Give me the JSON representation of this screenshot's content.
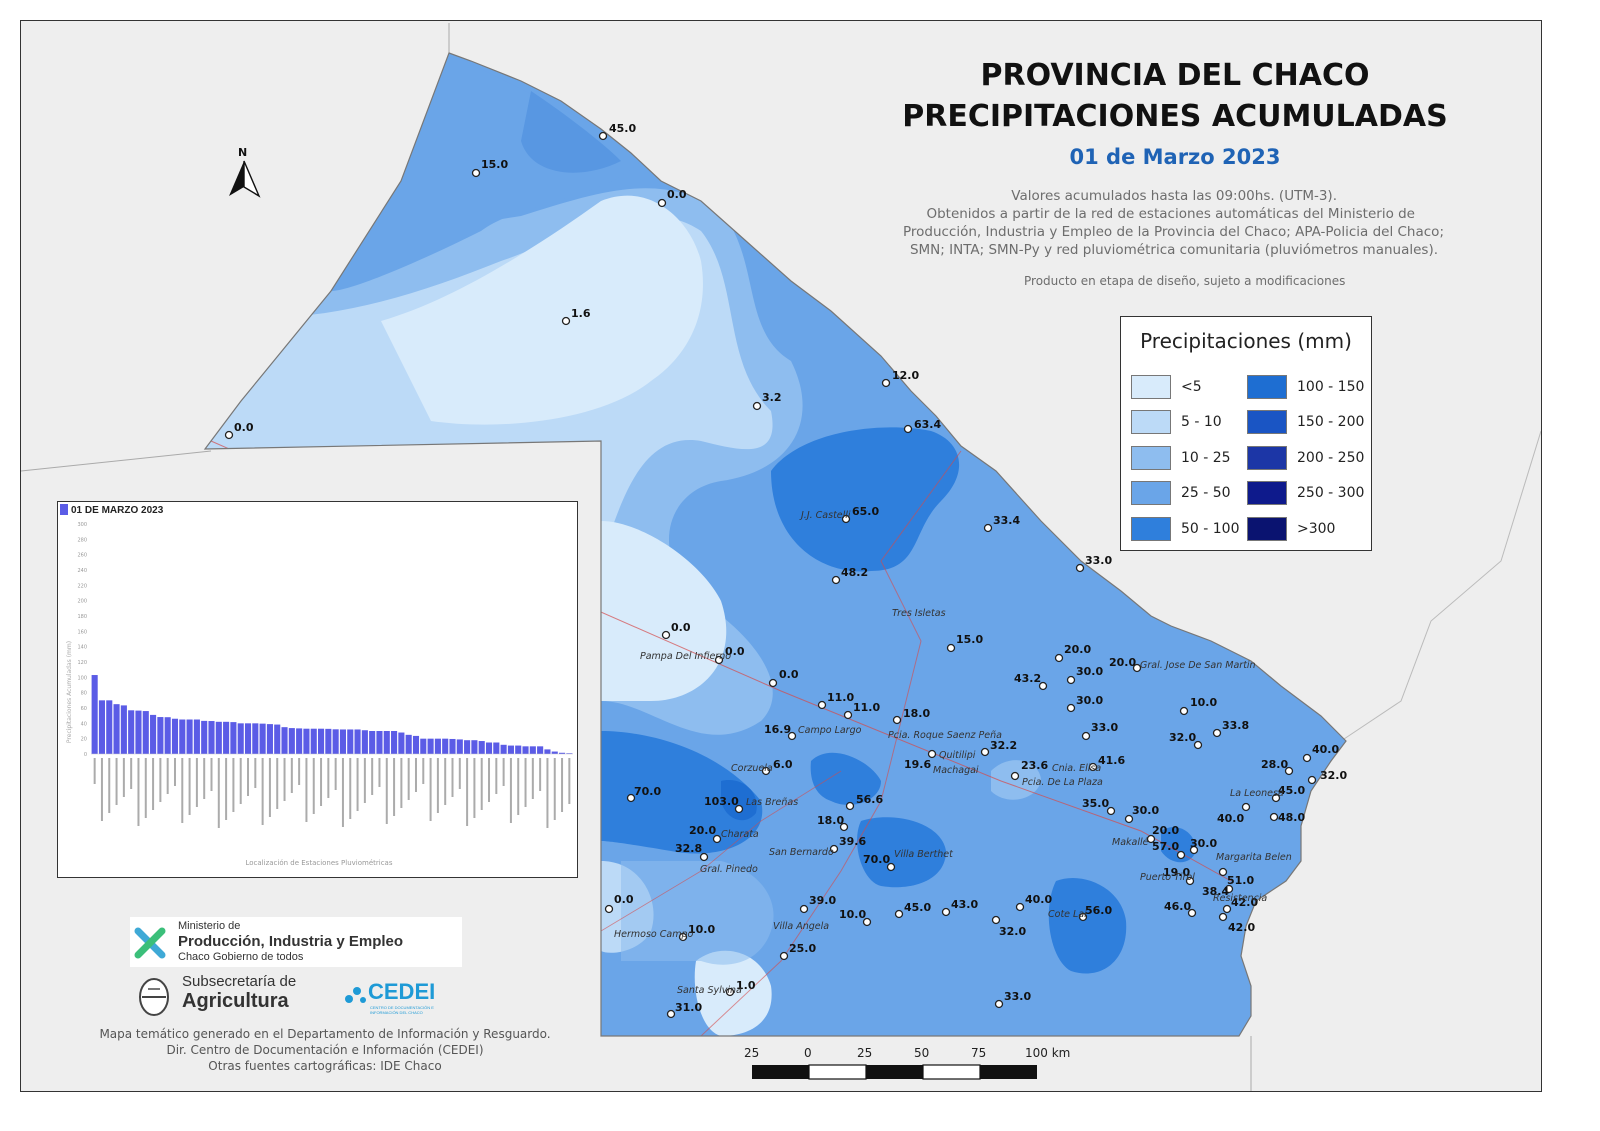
{
  "title": {
    "line1": "PROVINCIA DEL CHACO",
    "line2": "PRECIPITACIONES ACUMULADAS",
    "date": "01 de Marzo 2023"
  },
  "description": {
    "line1": "Valores acumulados hasta las 09:00hs. (UTM-3).",
    "line2": "Obtenidos a partir de la red de estaciones automáticas del Ministerio de",
    "line3": "Producción, Industria y Empleo de la Provincia del Chaco; APA-Policia del Chaco;",
    "line4": "SMN; INTA; SMN-Py y red pluviométrica comunitaria (pluviómetros manuales).",
    "note": "Producto en etapa de diseño, sujeto a modificaciones"
  },
  "legend": {
    "title": "Precipitaciones (mm)",
    "items": [
      {
        "label": "<5",
        "color": "#d8ebfb"
      },
      {
        "label": "5 - 10",
        "color": "#bcdaf7"
      },
      {
        "label": "10 - 25",
        "color": "#8ebdef"
      },
      {
        "label": "25 - 50",
        "color": "#6aa5e8"
      },
      {
        "label": "50 - 100",
        "color": "#2f7fdc"
      },
      {
        "label": "100 - 150",
        "color": "#1e6ed2"
      },
      {
        "label": "150 - 200",
        "color": "#1a55c4"
      },
      {
        "label": "200 - 250",
        "color": "#1c36a6"
      },
      {
        "label": "250 - 300",
        "color": "#0e1a8c"
      },
      {
        "label": ">300",
        "color": "#0a1370"
      }
    ]
  },
  "north": {
    "label": "N"
  },
  "scale": {
    "labels": [
      "25",
      "0",
      "25",
      "50",
      "75",
      "100 km"
    ]
  },
  "stations": [
    {
      "value": "45.0"
    },
    {
      "value": "15.0"
    },
    {
      "value": "0.0"
    },
    {
      "value": "1.6"
    },
    {
      "value": "3.2"
    },
    {
      "value": "0.0"
    },
    {
      "value": "12.0"
    },
    {
      "value": "63.4"
    },
    {
      "value": "65.0"
    },
    {
      "value": "33.4"
    },
    {
      "value": "33.0"
    },
    {
      "value": "48.2"
    },
    {
      "value": "0.0"
    },
    {
      "value": "0.0"
    },
    {
      "value": "0.0"
    },
    {
      "value": "15.0"
    },
    {
      "value": "20.0"
    },
    {
      "value": "20.0"
    },
    {
      "value": "30.0"
    },
    {
      "value": "43.2"
    },
    {
      "value": "11.0"
    },
    {
      "value": "11.0"
    },
    {
      "value": "16.9"
    },
    {
      "value": "18.0"
    },
    {
      "value": "30.0"
    },
    {
      "value": "10.0"
    },
    {
      "value": "33.0"
    },
    {
      "value": "32.0"
    },
    {
      "value": "33.8"
    },
    {
      "value": "32.2"
    },
    {
      "value": "19.6"
    },
    {
      "value": "6.0"
    },
    {
      "value": "23.6"
    },
    {
      "value": "41.6"
    },
    {
      "value": "40.0"
    },
    {
      "value": "28.0"
    },
    {
      "value": "32.0"
    },
    {
      "value": "45.0"
    },
    {
      "value": "70.0"
    },
    {
      "value": "103.0"
    },
    {
      "value": "56.6"
    },
    {
      "value": "35.0"
    },
    {
      "value": "30.0"
    },
    {
      "value": "40.0"
    },
    {
      "value": "48.0"
    },
    {
      "value": "20.0"
    },
    {
      "value": "18.0"
    },
    {
      "value": "39.6"
    },
    {
      "value": "20.0"
    },
    {
      "value": "57.0"
    },
    {
      "value": "30.0"
    },
    {
      "value": "32.8"
    },
    {
      "value": "70.0"
    },
    {
      "value": "19.0"
    },
    {
      "value": "51.0"
    },
    {
      "value": "38.4"
    },
    {
      "value": "0.0"
    },
    {
      "value": "39.0"
    },
    {
      "value": "10.0"
    },
    {
      "value": "45.0"
    },
    {
      "value": "43.0"
    },
    {
      "value": "40.0"
    },
    {
      "value": "56.0"
    },
    {
      "value": "46.0"
    },
    {
      "value": "42.0"
    },
    {
      "value": "10.0"
    },
    {
      "value": "32.0"
    },
    {
      "value": "42.0"
    },
    {
      "value": "25.0"
    },
    {
      "value": "1.0"
    },
    {
      "value": "33.0"
    },
    {
      "value": "31.0"
    }
  ],
  "places": [
    {
      "name": "J.J. Castelli"
    },
    {
      "name": "Tres Isletas"
    },
    {
      "name": "Pampa Del Infierno"
    },
    {
      "name": "Gral. Jose De San Martin"
    },
    {
      "name": "Campo Largo"
    },
    {
      "name": "Pcia. Roque Saenz Peña"
    },
    {
      "name": "Quitilipi"
    },
    {
      "name": "Machagai"
    },
    {
      "name": "Cnia. Elisa"
    },
    {
      "name": "Pcia. De La Plaza"
    },
    {
      "name": "Corzuela"
    },
    {
      "name": "Las Breñas"
    },
    {
      "name": "La Leonesa"
    },
    {
      "name": "Charata"
    },
    {
      "name": "Makallé"
    },
    {
      "name": "San Bernardo"
    },
    {
      "name": "Villa Berthet"
    },
    {
      "name": "Margarita Belen"
    },
    {
      "name": "Gral. Pinedo"
    },
    {
      "name": "Puerto Tirol"
    },
    {
      "name": "Resistencia"
    },
    {
      "name": "Hermoso Campo"
    },
    {
      "name": "Villa Angela"
    },
    {
      "name": "Cote Lai"
    },
    {
      "name": "Santa Sylvina"
    }
  ],
  "inset": {
    "title": "01 DE MARZO 2023",
    "ylabel": "Precipitaciones Acumuladas (mm)",
    "xlabel": "Localización de Estaciones Pluviométricas"
  },
  "chart_data": {
    "type": "bar",
    "title": "01 DE MARZO 2023",
    "ylabel": "Precipitaciones Acumuladas (mm)",
    "xlabel": "Localización de Estaciones Pluviométricas",
    "ylim": [
      0,
      300
    ],
    "yticks": [
      0,
      20,
      40,
      60,
      80,
      100,
      120,
      140,
      160,
      180,
      200,
      220,
      240,
      260,
      280,
      300
    ],
    "color": "#5b5ce6",
    "values": [
      103,
      70,
      70,
      65,
      63.4,
      57,
      56.6,
      56,
      51,
      48.2,
      48,
      46,
      45,
      45,
      45,
      43.2,
      43,
      42,
      42,
      41.6,
      40,
      40,
      40,
      39.6,
      39,
      38.4,
      35,
      33.8,
      33.4,
      33,
      33,
      33,
      32.8,
      32.2,
      32,
      32,
      32,
      31,
      30,
      30,
      30,
      30,
      28,
      25,
      23.6,
      20,
      20,
      20,
      20,
      19.6,
      19,
      18,
      18,
      16.9,
      15,
      15,
      12,
      11,
      11,
      10,
      10,
      10,
      6,
      3.2,
      1.6,
      1
    ]
  },
  "logos": {
    "ministry_small": "Ministerio de",
    "ministry_big": "Producción, Industria y Empleo",
    "ministry_sub": "Chaco Gobierno de todos",
    "sub_small": "Subsecretaría de",
    "sub_big": "Agricultura",
    "cedei": "CEDEI",
    "cedei_sub": "CENTRO DE DOCUMENTACIÓN E INFORMACIÓN DEL CHACO"
  },
  "credits": {
    "line1": "Mapa temático generado en el Departamento de Información y Resguardo.",
    "line2": "Dir. Centro de Documentación e Información (CEDEI)",
    "line3": "Otras fuentes cartográficas: IDE Chaco"
  }
}
